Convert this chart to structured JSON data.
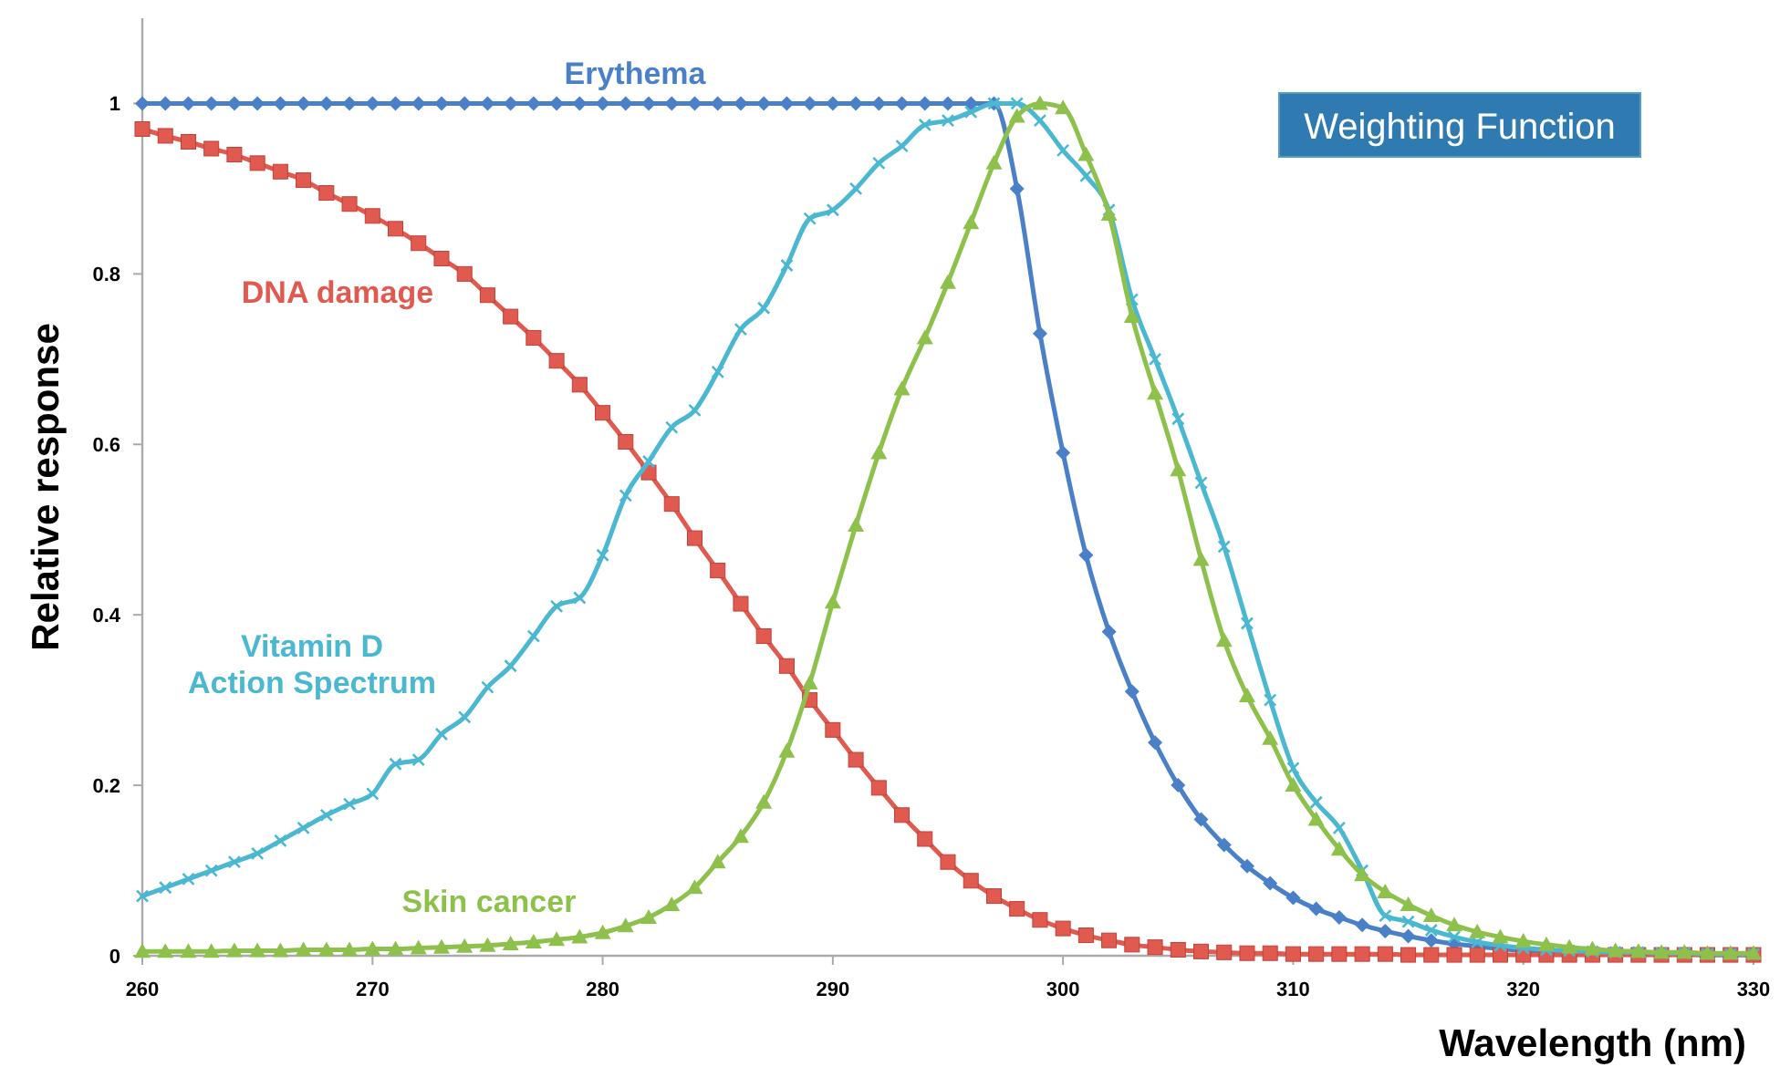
{
  "chart_data": {
    "type": "line",
    "xlabel": "Wavelength (nm)",
    "ylabel": "Relative response",
    "annotations": [
      "Weighting Function"
    ],
    "xlim": [
      260,
      330
    ],
    "ylim": [
      0,
      1.1
    ],
    "xticks": [
      260,
      270,
      280,
      290,
      300,
      310,
      320,
      330
    ],
    "yticks": [
      0,
      {
        "value": 0.2,
        "label": "0.2"
      },
      {
        "value": 0.4,
        "label": "0.4"
      },
      {
        "value": 0.6,
        "label": "0.6"
      },
      {
        "value": 0.8,
        "label": "0.8"
      },
      1
    ],
    "grid": false,
    "line_style": "solid",
    "x": [
      260,
      261,
      262,
      263,
      264,
      265,
      266,
      267,
      268,
      269,
      270,
      271,
      272,
      273,
      274,
      275,
      276,
      277,
      278,
      279,
      280,
      281,
      282,
      283,
      284,
      285,
      286,
      287,
      288,
      289,
      290,
      291,
      292,
      293,
      294,
      295,
      296,
      297,
      298,
      299,
      300,
      301,
      302,
      303,
      304,
      305,
      306,
      307,
      308,
      309,
      310,
      311,
      312,
      313,
      314,
      315,
      316,
      317,
      318,
      319,
      320,
      321,
      322,
      323,
      324,
      325,
      326,
      327,
      328,
      329,
      330
    ],
    "series": [
      {
        "name": "Erythema",
        "color": "#4a80c8",
        "marker": "diamond",
        "values": [
          1,
          1,
          1,
          1,
          1,
          1,
          1,
          1,
          1,
          1,
          1,
          1,
          1,
          1,
          1,
          1,
          1,
          1,
          1,
          1,
          1,
          1,
          1,
          1,
          1,
          1,
          1,
          1,
          1,
          1,
          1,
          1,
          1,
          1,
          1,
          1,
          1,
          1,
          0.9,
          0.73,
          0.59,
          0.47,
          0.38,
          0.31,
          0.25,
          0.2,
          0.16,
          0.13,
          0.105,
          0.085,
          0.068,
          0.055,
          0.045,
          0.036,
          0.029,
          0.023,
          0.018,
          0.014,
          0.011,
          0.008,
          0.006,
          0.005,
          0.004,
          0.003,
          0.003,
          0.002,
          0.002,
          0.002,
          0.001,
          0.001,
          0.001
        ]
      },
      {
        "name": "DNA damage",
        "color": "#e05a50",
        "marker": "square",
        "values": [
          0.97,
          0.962,
          0.955,
          0.947,
          0.94,
          0.93,
          0.92,
          0.91,
          0.895,
          0.882,
          0.868,
          0.853,
          0.836,
          0.818,
          0.8,
          0.775,
          0.75,
          0.725,
          0.698,
          0.67,
          0.637,
          0.603,
          0.567,
          0.53,
          0.49,
          0.452,
          0.413,
          0.375,
          0.34,
          0.3,
          0.265,
          0.23,
          0.197,
          0.165,
          0.137,
          0.11,
          0.088,
          0.07,
          0.055,
          0.042,
          0.032,
          0.024,
          0.018,
          0.013,
          0.01,
          0.007,
          0.005,
          0.004,
          0.003,
          0.003,
          0.002,
          0.002,
          0.002,
          0.002,
          0.002,
          0.001,
          0.001,
          0.001,
          0.001,
          0.001,
          0.001,
          0.001,
          0.001,
          0.001,
          0.001,
          0.001,
          0.001,
          0.001,
          0.001,
          0.001,
          0.001
        ]
      },
      {
        "name": "Vitamin D\nAction Spectrum",
        "color": "#4bb8d2",
        "marker": "cross",
        "values": [
          0.07,
          0.08,
          0.09,
          0.1,
          0.11,
          0.12,
          0.135,
          0.15,
          0.165,
          0.178,
          0.19,
          0.225,
          0.23,
          0.26,
          0.28,
          0.315,
          0.34,
          0.375,
          0.41,
          0.42,
          0.47,
          0.54,
          0.58,
          0.62,
          0.64,
          0.685,
          0.735,
          0.76,
          0.81,
          0.865,
          0.875,
          0.9,
          0.93,
          0.95,
          0.975,
          0.98,
          0.99,
          1,
          1,
          0.98,
          0.945,
          0.915,
          0.875,
          0.77,
          0.7,
          0.63,
          0.555,
          0.48,
          0.39,
          0.3,
          0.22,
          0.18,
          0.15,
          0.1,
          0.047,
          0.04,
          0.03,
          0.022,
          0.016,
          0.012,
          0.009,
          0.007,
          0.006,
          0.005,
          0.004,
          0.004,
          0.003,
          0.003,
          0.002,
          0.002,
          0.002
        ]
      },
      {
        "name": "Skin cancer",
        "color": "#8ec14c",
        "marker": "triangle",
        "values": [
          0.005,
          0.005,
          0.005,
          0.005,
          0.006,
          0.006,
          0.006,
          0.007,
          0.007,
          0.007,
          0.008,
          0.008,
          0.009,
          0.01,
          0.011,
          0.012,
          0.014,
          0.016,
          0.019,
          0.022,
          0.027,
          0.035,
          0.045,
          0.06,
          0.08,
          0.11,
          0.14,
          0.18,
          0.24,
          0.32,
          0.415,
          0.505,
          0.59,
          0.665,
          0.725,
          0.79,
          0.86,
          0.93,
          0.985,
          1,
          0.995,
          0.94,
          0.87,
          0.75,
          0.66,
          0.57,
          0.465,
          0.37,
          0.305,
          0.255,
          0.2,
          0.16,
          0.125,
          0.095,
          0.075,
          0.06,
          0.047,
          0.036,
          0.028,
          0.022,
          0.017,
          0.013,
          0.01,
          0.008,
          0.006,
          0.005,
          0.004,
          0.004,
          0.003,
          0.003,
          0.003
        ]
      }
    ]
  }
}
